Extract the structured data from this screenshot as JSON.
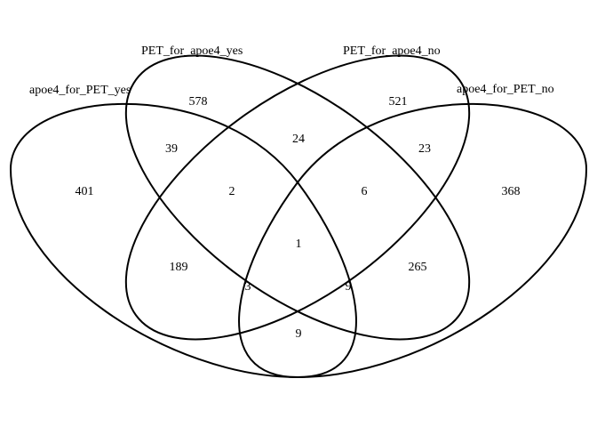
{
  "sets": [
    {
      "name": "apoe4_for_PET_yes"
    },
    {
      "name": "PET_for_apoe4_yes"
    },
    {
      "name": "PET_for_apoe4_no"
    },
    {
      "name": "apoe4_for_PET_no"
    }
  ],
  "regions": [
    {
      "sets": [
        "apoe4_for_PET_yes"
      ],
      "count": "401"
    },
    {
      "sets": [
        "PET_for_apoe4_yes"
      ],
      "count": "578"
    },
    {
      "sets": [
        "PET_for_apoe4_no"
      ],
      "count": "521"
    },
    {
      "sets": [
        "apoe4_for_PET_no"
      ],
      "count": "368"
    },
    {
      "sets": [
        "apoe4_for_PET_yes",
        "PET_for_apoe4_yes"
      ],
      "count": "39"
    },
    {
      "sets": [
        "PET_for_apoe4_yes",
        "PET_for_apoe4_no"
      ],
      "count": "24"
    },
    {
      "sets": [
        "PET_for_apoe4_no",
        "apoe4_for_PET_no"
      ],
      "count": "23"
    },
    {
      "sets": [
        "apoe4_for_PET_yes",
        "PET_for_apoe4_yes",
        "PET_for_apoe4_no"
      ],
      "count": "2"
    },
    {
      "sets": [
        "PET_for_apoe4_yes",
        "PET_for_apoe4_no",
        "apoe4_for_PET_no"
      ],
      "count": "6"
    },
    {
      "sets": [
        "apoe4_for_PET_yes",
        "PET_for_apoe4_yes",
        "PET_for_apoe4_no",
        "apoe4_for_PET_no"
      ],
      "count": "1"
    },
    {
      "sets": [
        "apoe4_for_PET_yes",
        "PET_for_apoe4_no"
      ],
      "count": "189"
    },
    {
      "sets": [
        "PET_for_apoe4_yes",
        "apoe4_for_PET_no"
      ],
      "count": "265"
    },
    {
      "sets": [
        "apoe4_for_PET_yes",
        "PET_for_apoe4_no",
        "apoe4_for_PET_no"
      ],
      "count": "3"
    },
    {
      "sets": [
        "apoe4_for_PET_yes",
        "PET_for_apoe4_yes",
        "apoe4_for_PET_no"
      ],
      "count": "9"
    },
    {
      "sets": [
        "apoe4_for_PET_yes",
        "apoe4_for_PET_no"
      ],
      "count": "9"
    }
  ]
}
